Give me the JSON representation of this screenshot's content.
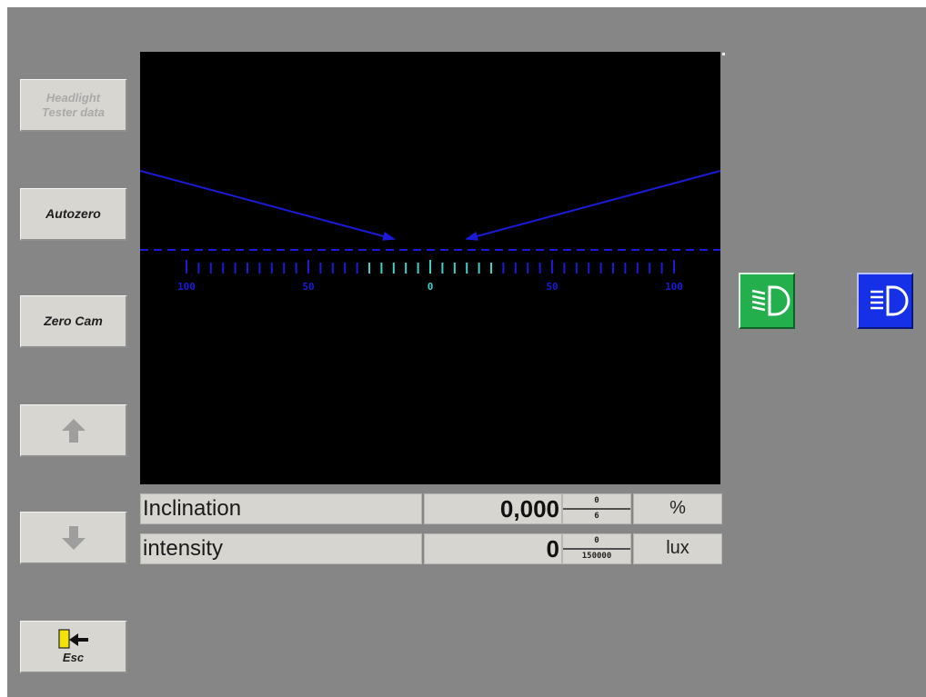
{
  "sidebar": {
    "headlight_data_label": [
      "Headlight",
      "Tester data"
    ],
    "autozero_label": "Autozero",
    "zero_cam_label": "Zero Cam",
    "esc_label": "Esc"
  },
  "scale": {
    "tick_labels": [
      "100",
      "50",
      "0",
      "50",
      "100"
    ]
  },
  "readings": {
    "inclination": {
      "label": "Inclination",
      "value": "0,000",
      "range_min": "0",
      "range_max": "6",
      "unit": "%"
    },
    "intensity": {
      "label": "intensity",
      "value": "0",
      "range_min": "0",
      "range_max": "150000",
      "unit": "lux"
    }
  },
  "icons": {
    "low_beam": "low-beam-headlight-icon",
    "high_beam": "high-beam-headlight-icon",
    "up": "arrow-up-icon",
    "down": "arrow-down-icon",
    "exit": "exit-door-icon"
  },
  "colors": {
    "background": "#868686",
    "screen": "#000000",
    "beam_lines": "#1a1ad8",
    "scale_center": "#3fd0c8",
    "low_beam": "#23b04c",
    "high_beam": "#1530e6"
  }
}
